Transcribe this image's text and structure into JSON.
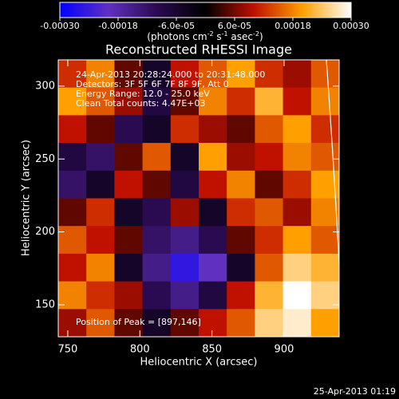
{
  "chart_data": {
    "type": "heatmap",
    "title": "Reconstructed RHESSI Image",
    "xlabel": "Heliocentric X (arcsec)",
    "ylabel": "Heliocentric Y (arcsec)",
    "xlim": [
      743.4,
      938.2
    ],
    "ylim": [
      128.1,
      318
    ],
    "xticks": [
      750,
      800,
      850,
      900
    ],
    "yticks": [
      150,
      200,
      250,
      300
    ],
    "zlim": [
      -0.0003,
      0.0003
    ],
    "colors": [
      "#0000ff",
      "#6030c0",
      "#2a0a50",
      "#000000",
      "#c01000",
      "#ffa000",
      "#ffffff"
    ],
    "colorbar_ticks": [
      {
        "value": -0.0003,
        "label": "-0.00030"
      },
      {
        "value": -0.00018,
        "label": "-0.00018"
      },
      {
        "value": -6e-05,
        "label": "-6.0e-05"
      },
      {
        "value": 6e-05,
        "label": "6.0e-05"
      },
      {
        "value": 0.00018,
        "label": "0.00018"
      },
      {
        "value": 0.0003,
        "label": "0.00030"
      }
    ],
    "colorbar_unit": [
      "(photons cm",
      "-2",
      " s",
      "-1",
      " asec",
      "-2",
      ")"
    ],
    "annotations": [
      "24-Apr-2013 20:28:24.000 to 20:31:48.000",
      "Detectors: 3F 5F 6F 7F 8F 9F, Att 0",
      "Energy Range: 12.0 - 25.0 keV",
      "Clean  Total counts: 4.47E+03"
    ],
    "peak_label": "Position of Peak = [897,146]",
    "timestamp": "25-Apr-2013 01:19",
    "z": [
      [
        0.00012,
        0.00018,
        5e-05,
        -5e-05,
        0.0001,
        0.00015,
        0.0002,
        0.00012,
        8e-05,
        0.00015
      ],
      [
        0.0002,
        0.00015,
        8e-05,
        -8e-05,
        5e-05,
        0.00018,
        0.00012,
        0.00022,
        0.0001,
        0.00018
      ],
      [
        0.0001,
        5e-05,
        -0.0001,
        -5e-05,
        0.00012,
        8e-05,
        5e-05,
        0.00015,
        0.0002,
        0.00012
      ],
      [
        -8e-05,
        -0.00012,
        5e-05,
        0.00015,
        -5e-05,
        0.0002,
        8e-05,
        0.0001,
        0.00018,
        0.00015
      ],
      [
        -0.00012,
        -5e-05,
        0.0001,
        5e-05,
        -8e-05,
        0.0001,
        0.00018,
        5e-05,
        0.00012,
        0.0002
      ],
      [
        5e-05,
        0.00012,
        -5e-05,
        -0.0001,
        8e-05,
        -5e-05,
        0.00012,
        0.00015,
        8e-05,
        0.00018
      ],
      [
        0.00015,
        0.0001,
        5e-05,
        -0.00012,
        -0.00015,
        -0.0001,
        5e-05,
        0.00012,
        0.0002,
        0.00015
      ],
      [
        0.0001,
        0.00018,
        -5e-05,
        -0.00015,
        -0.00025,
        -0.0002,
        -5e-05,
        0.00015,
        0.00025,
        0.00022
      ],
      [
        0.00018,
        0.00012,
        8e-05,
        -0.0001,
        -0.00015,
        -8e-05,
        0.0001,
        0.00022,
        0.0003,
        0.00025
      ],
      [
        8e-05,
        0.00015,
        5e-05,
        -5e-05,
        5e-05,
        0.0001,
        0.00015,
        0.00025,
        0.00028,
        0.0002
      ]
    ]
  }
}
